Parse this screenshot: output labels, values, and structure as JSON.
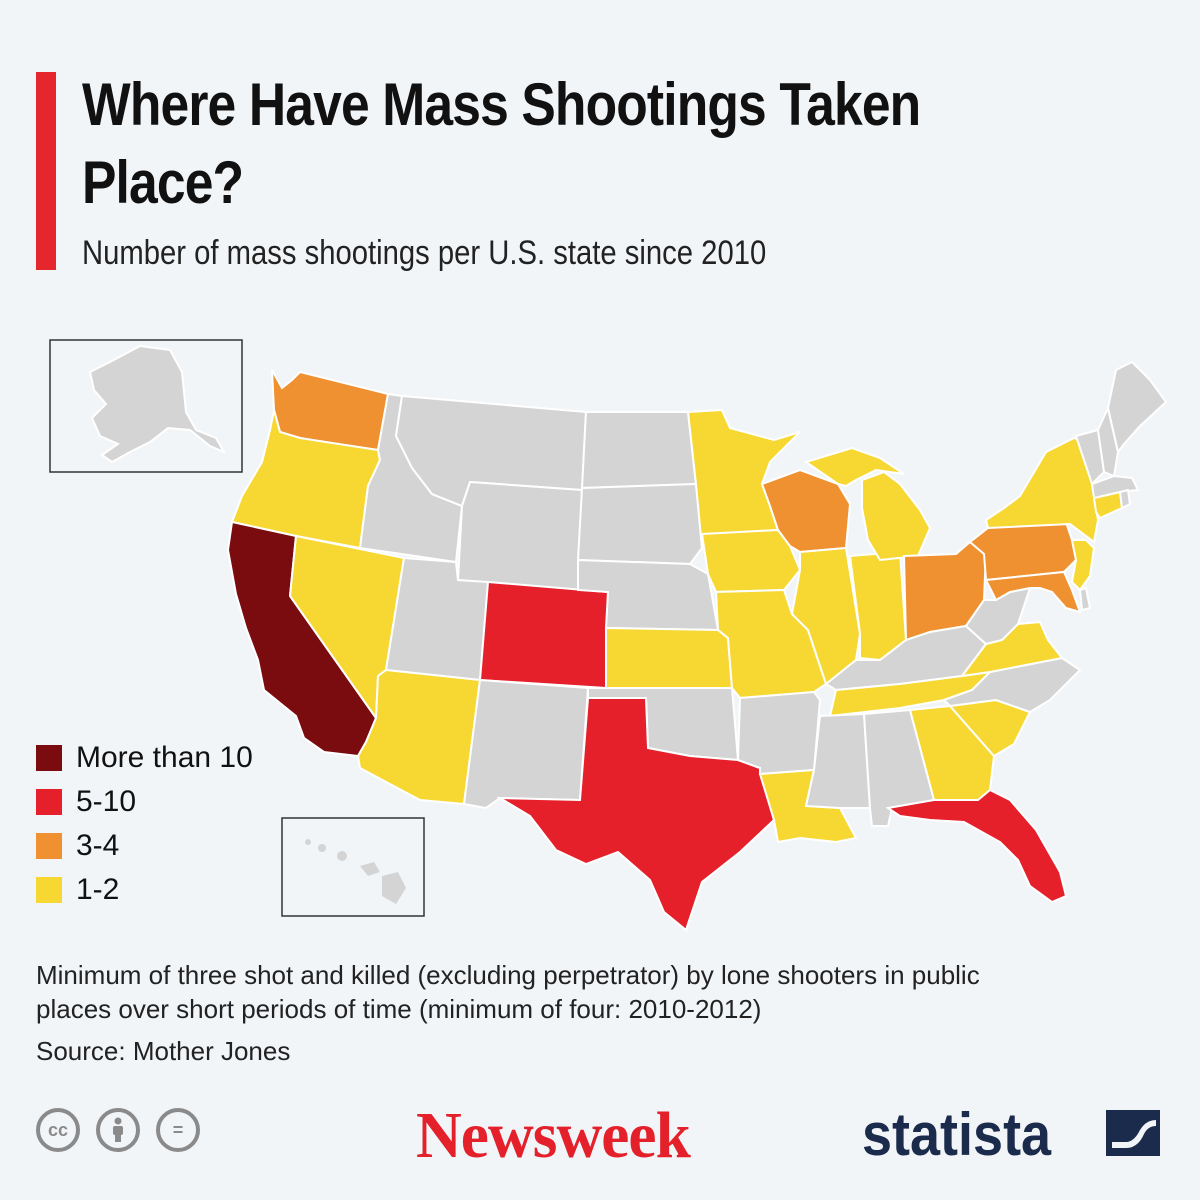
{
  "header": {
    "title": "Where Have Mass Shootings Taken Place?",
    "subtitle": "Number of mass shootings per U.S. state since 2010"
  },
  "legend": [
    {
      "label": "More than 10",
      "color": "#7a0b0f"
    },
    {
      "label": "5-10",
      "color": "#e5202a"
    },
    {
      "label": "3-4",
      "color": "#ef9130"
    },
    {
      "label": "1-2",
      "color": "#f7d832"
    }
  ],
  "no_data_color": "#d4d4d4",
  "chart_data": {
    "type": "choropleth",
    "categories": {
      "More than 10": [
        "CA"
      ],
      "5-10": [
        "CO",
        "TX",
        "FL"
      ],
      "3-4": [
        "WA",
        "WI",
        "OH",
        "PA",
        "MD"
      ],
      "1-2": [
        "OR",
        "NV",
        "AZ",
        "MN",
        "IA",
        "MO",
        "KS",
        "IL",
        "IN",
        "MI",
        "TN",
        "VA",
        "GA",
        "SC",
        "LA",
        "NY",
        "NJ",
        "CT"
      ]
    }
  },
  "footnote": "Minimum of three shot and killed (excluding perpetrator) by lone shooters in public places over short periods of time (minimum of four: 2010-2012)",
  "source": "Source: Mother Jones",
  "footer": {
    "license_icons": [
      "cc-icon",
      "attribution-icon",
      "no-derivatives-icon"
    ],
    "cc_text": "cc",
    "nd_text": "=",
    "newsweek": "Newsweek",
    "statista": "statista"
  }
}
